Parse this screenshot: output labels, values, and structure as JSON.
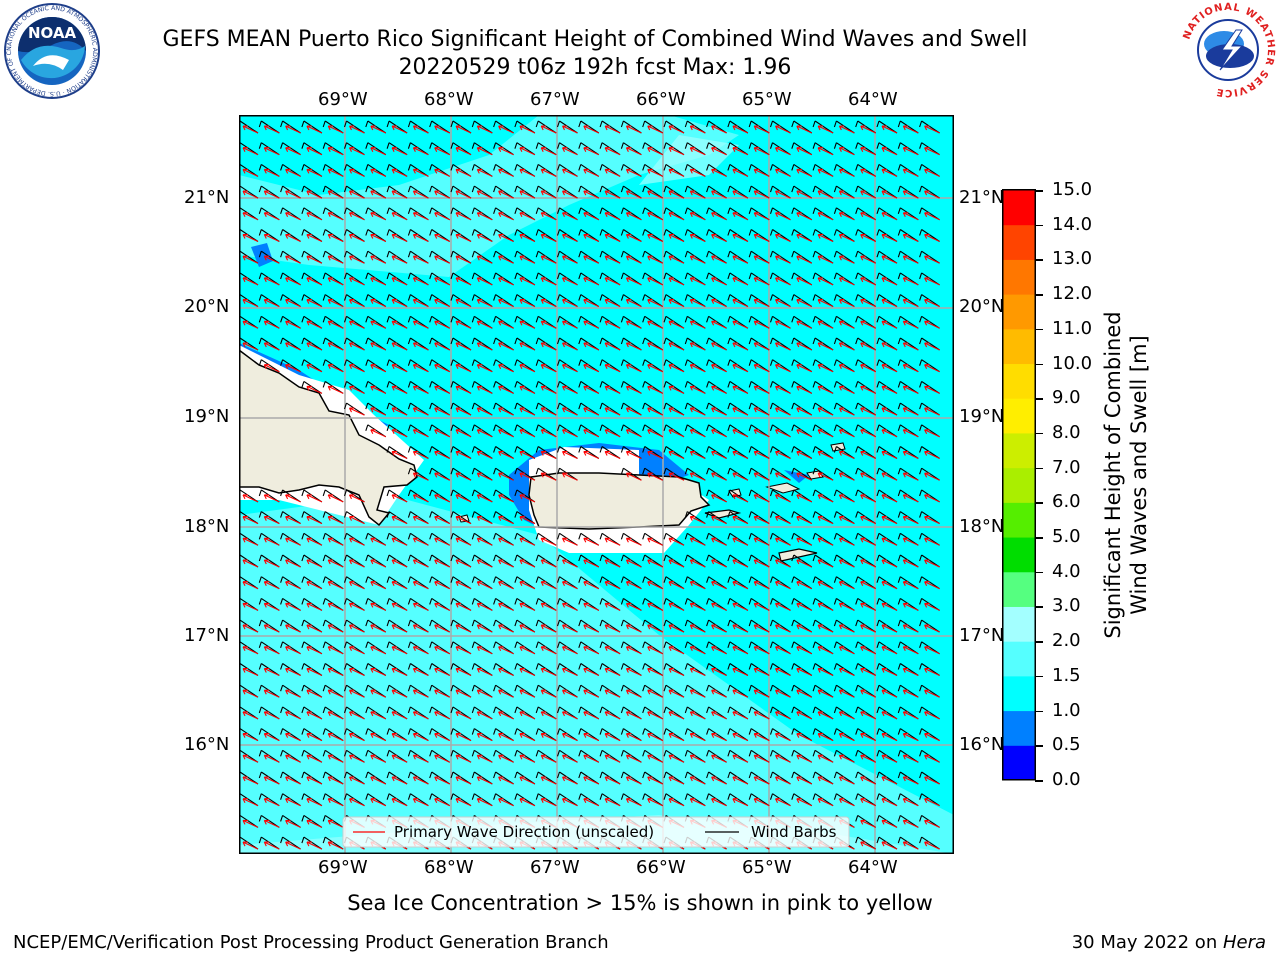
{
  "header": {
    "title_line1": "GEFS MEAN Puerto Rico Significant Height of Combined Wind Waves and Swell",
    "title_line2": "20220529 t06z 192h fcst   Max: 1.96",
    "noaa_logo_text": "NOAA",
    "noaa_ring_text": "NATIONAL OCEANIC AND ATMOSPHERIC ADMINISTRATION · U.S. DEPARTMENT OF COMMERCE",
    "nws_ring_text": "NATIONAL WEATHER SERVICE"
  },
  "map": {
    "lon_labels": [
      "69°W",
      "68°W",
      "67°W",
      "66°W",
      "65°W",
      "64°W"
    ],
    "lat_labels": [
      "21°N",
      "20°N",
      "19°N",
      "18°N",
      "17°N",
      "16°N"
    ],
    "legend": {
      "wave_direction": "Primary Wave Direction (unscaled)",
      "wind_barbs": "Wind Barbs"
    },
    "colors": {
      "ocean_main": "#00ffff",
      "ocean_light": "#55ffff",
      "ocean_lighter": "#a3ffff",
      "near_shore": "#0080ff",
      "land": "#efedde"
    }
  },
  "colorbar": {
    "label": "Significant Height of Combined Wind Waves and Swell [m]",
    "label_line1": "Significant Height of Combined",
    "label_line2": "Wind Waves and Swell [m]",
    "ticks": [
      "15.0",
      "14.0",
      "13.0",
      "12.0",
      "11.0",
      "10.0",
      "9.0",
      "8.0",
      "7.0",
      "6.0",
      "5.0",
      "4.0",
      "3.0",
      "2.0",
      "1.5",
      "1.0",
      "0.5",
      "0.0"
    ],
    "colors_bottom_to_top": [
      "#0000ff",
      "#0080ff",
      "#00ffff",
      "#55ffff",
      "#a3ffff",
      "#55ff80",
      "#00dd00",
      "#55ee00",
      "#aaee00",
      "#ccee00",
      "#ffee00",
      "#ffdd00",
      "#ffbb00",
      "#ff9900",
      "#ff7700",
      "#ff4400",
      "#ff0000"
    ]
  },
  "note": "Sea Ice Concentration > 15% is shown in pink to yellow",
  "footer": {
    "left": "NCEP/EMC/Verification Post Processing Product Generation Branch",
    "right_prefix": "30 May 2022 on ",
    "right_machine": "Hera"
  }
}
